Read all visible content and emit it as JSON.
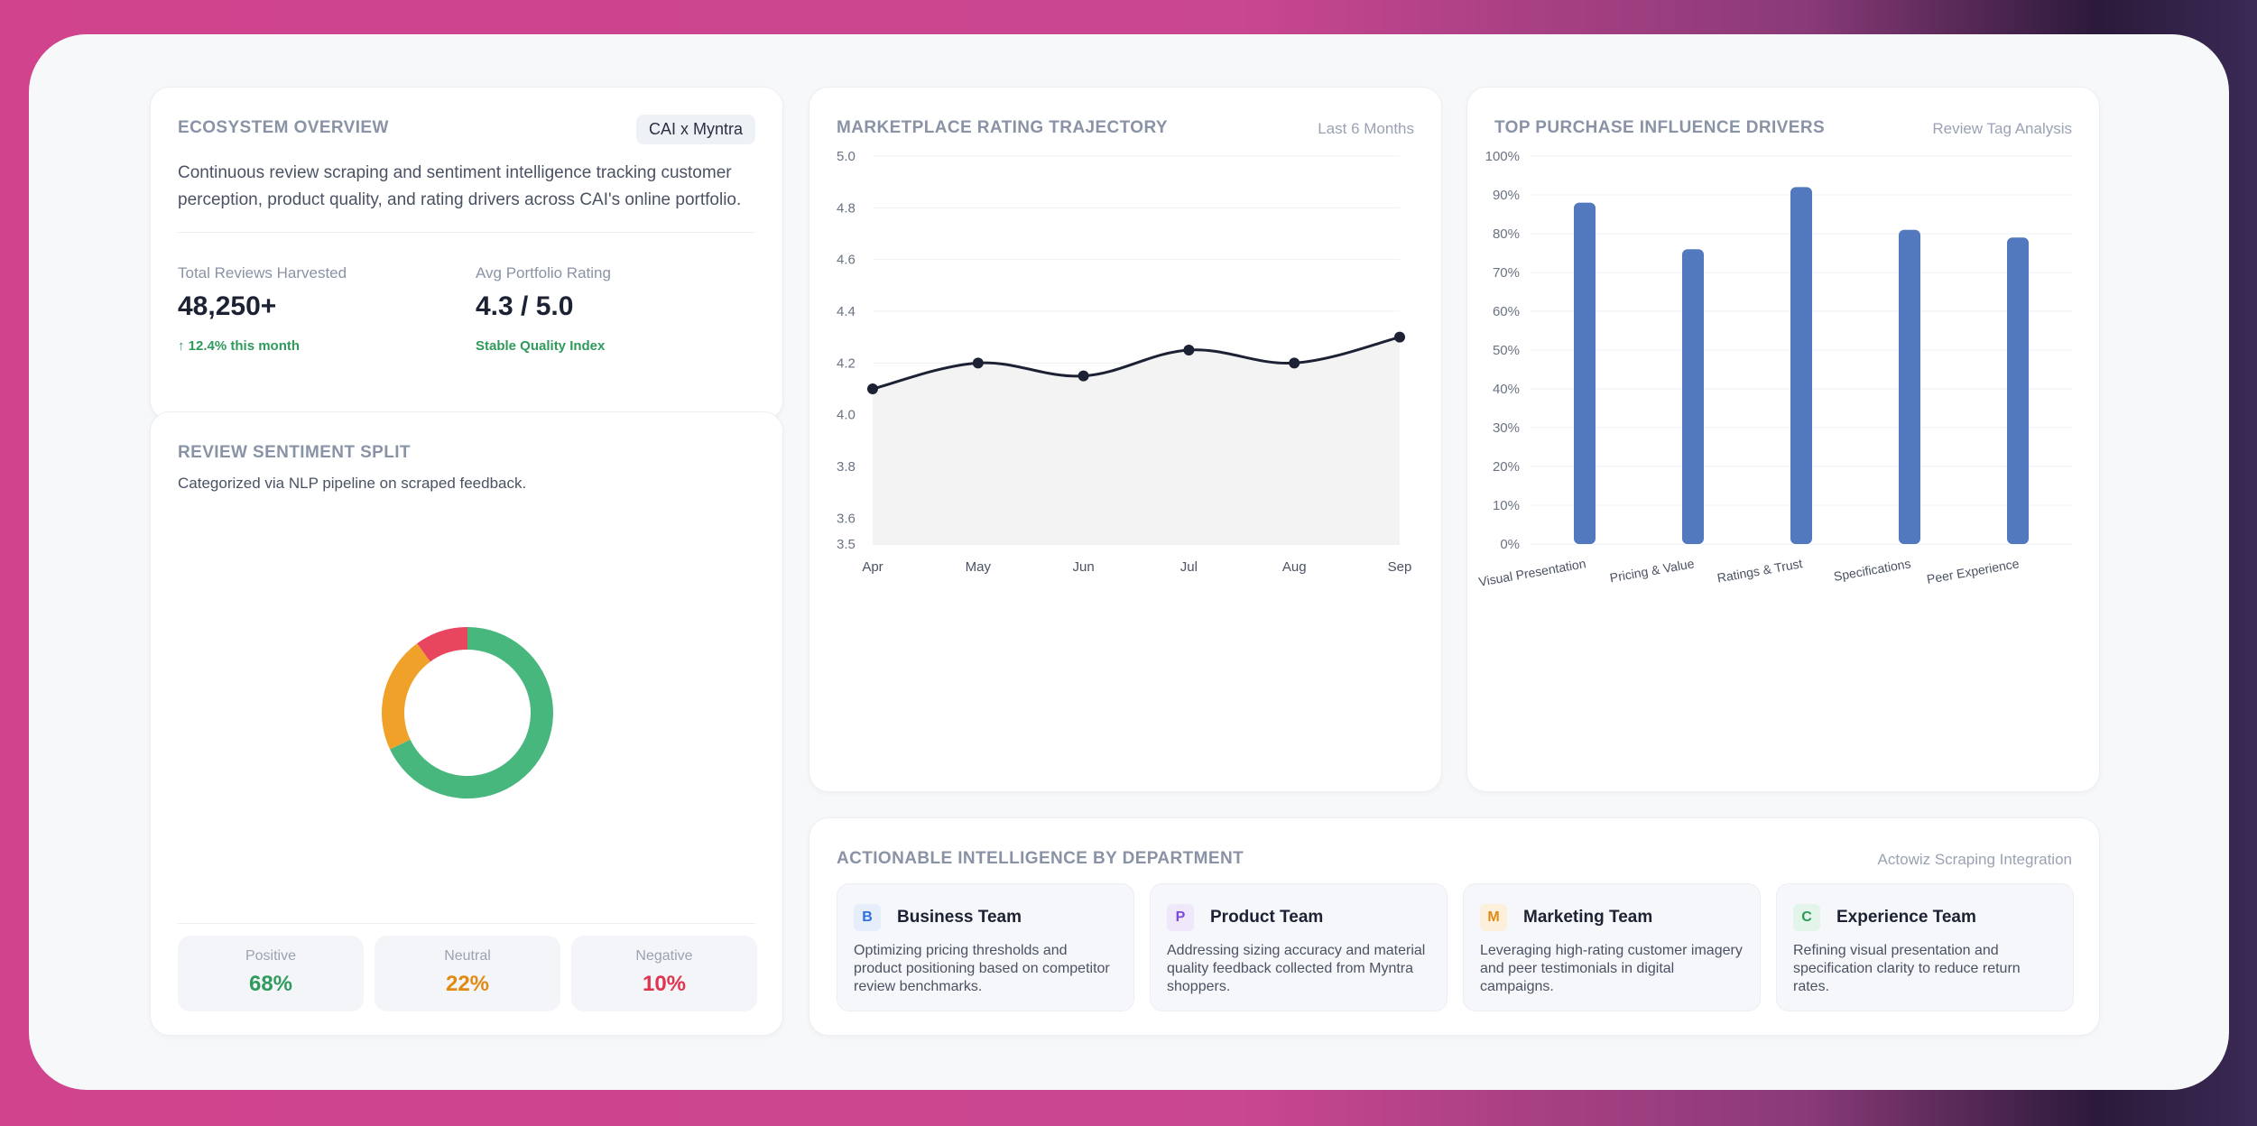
{
  "overview": {
    "title": "ECOSYSTEM OVERVIEW",
    "badge": "CAI x Myntra",
    "description_line1": "Continuous review scraping and sentiment intelligence tracking customer",
    "description_line2": "perception, product quality, and rating drivers across CAI's online portfolio.",
    "stats": [
      {
        "label": "Total Reviews Harvested",
        "value": "48,250+",
        "note": "↑ 12.4% this month"
      },
      {
        "label": "Avg Portfolio Rating",
        "value": "4.3 / 5.0",
        "note": "Stable Quality Index"
      }
    ]
  },
  "sentiment": {
    "title": "REVIEW SENTIMENT SPLIT",
    "subtitle": "Categorized via NLP pipeline on scraped feedback.",
    "items": [
      {
        "label": "Positive",
        "value": "68%",
        "share": 68,
        "color": "#48b77e"
      },
      {
        "label": "Neutral",
        "value": "22%",
        "share": 22,
        "color": "#f0a12a"
      },
      {
        "label": "Negative",
        "value": "10%",
        "share": 10,
        "color": "#e8465f"
      }
    ]
  },
  "rating_card": {
    "title": "MARKETPLACE RATING TRAJECTORY",
    "meta": "Last 6 Months"
  },
  "drivers_card": {
    "title": "TOP PURCHASE INFLUENCE DRIVERS",
    "meta": "Review Tag Analysis"
  },
  "departments": {
    "title": "ACTIONABLE INTELLIGENCE BY DEPARTMENT",
    "meta": "Actowiz Scraping Integration",
    "items": [
      {
        "letter": "B",
        "title": "Business Team",
        "desc": "Optimizing pricing thresholds and product positioning based on competitor review benchmarks.",
        "accent": "#2f6fe0",
        "accent_bg": "#e6eefc"
      },
      {
        "letter": "P",
        "title": "Product Team",
        "desc": "Addressing sizing accuracy and material quality feedback collected from Myntra shoppers.",
        "accent": "#7a4bd6",
        "accent_bg": "#efe8fb"
      },
      {
        "letter": "M",
        "title": "Marketing Team",
        "desc": "Leveraging high-rating customer imagery and peer testimonials in digital campaigns.",
        "accent": "#e08a12",
        "accent_bg": "#fcf0dd"
      },
      {
        "letter": "C",
        "title": "Experience Team",
        "desc": "Refining visual presentation and specification clarity to reduce return rates.",
        "accent": "#2f9a5c",
        "accent_bg": "#e3f4ea"
      }
    ]
  },
  "chart_data": [
    {
      "type": "line",
      "x": [
        "Apr",
        "May",
        "Jun",
        "Jul",
        "Aug",
        "Sep"
      ],
      "values": [
        4.1,
        4.2,
        4.15,
        4.25,
        4.2,
        4.3
      ],
      "ylim": [
        3.5,
        5.0
      ],
      "yticks": [
        "5.0",
        "4.8",
        "4.6",
        "4.4",
        "4.2",
        "4.0",
        "3.8",
        "3.6",
        "3.5"
      ],
      "ytick_values": [
        5.0,
        4.8,
        4.6,
        4.4,
        4.2,
        4.0,
        3.8,
        3.6,
        3.5
      ],
      "grid": true,
      "line_color": "#1c2233",
      "fill_color": "#f3f3f3"
    },
    {
      "type": "bar",
      "categories": [
        "Visual Presentation",
        "Pricing & Value",
        "Ratings & Trust",
        "Specifications",
        "Peer Experience"
      ],
      "values": [
        88,
        76,
        92,
        81,
        79
      ],
      "ylim": [
        0,
        100
      ],
      "yticks": [
        "100%",
        "90%",
        "80%",
        "70%",
        "60%",
        "50%",
        "40%",
        "30%",
        "20%",
        "10%",
        "0%"
      ],
      "ytick_values": [
        100,
        90,
        80,
        70,
        60,
        50,
        40,
        30,
        20,
        10,
        0
      ],
      "grid": true,
      "bar_color": "#5279be"
    },
    {
      "type": "pie",
      "categories": [
        "Positive",
        "Neutral",
        "Negative"
      ],
      "values": [
        68,
        22,
        10
      ],
      "colors": [
        "#48b77e",
        "#f0a12a",
        "#e8465f"
      ]
    }
  ]
}
